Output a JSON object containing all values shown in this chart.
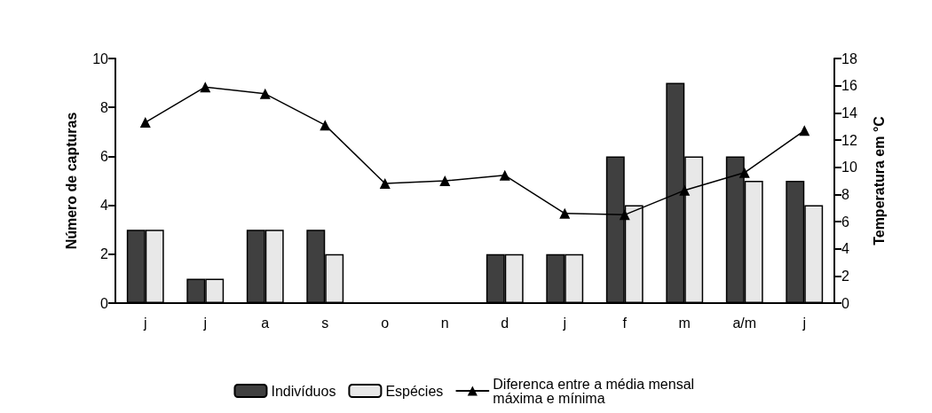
{
  "chart_data": {
    "type": "bar",
    "ylabel": "Número de capturas",
    "y2label": "Temperatura em °C",
    "categories": [
      "j",
      "j",
      "a",
      "s",
      "o",
      "n",
      "d",
      "j",
      "f",
      "m",
      "a/m",
      "j"
    ],
    "series": [
      {
        "name": "Indivíduos",
        "color": "#404040",
        "values": [
          3,
          1,
          3,
          3,
          0,
          0,
          2,
          2,
          6,
          9,
          6,
          5
        ]
      },
      {
        "name": "Espécies",
        "color": "#e8e8e8",
        "values": [
          3,
          1,
          3,
          2,
          0,
          0,
          2,
          2,
          4,
          6,
          5,
          4
        ]
      },
      {
        "name": "Diferenca entre a média mensal máxima e mínima",
        "type": "line",
        "axis": "y2",
        "color": "#000000",
        "marker": "triangle",
        "values": [
          13.3,
          15.9,
          15.4,
          13.1,
          8.8,
          9.0,
          9.4,
          6.6,
          6.5,
          8.3,
          9.6,
          12.7
        ]
      }
    ],
    "ylim": [
      0,
      10
    ],
    "yticks": [
      0,
      2,
      4,
      6,
      8,
      10
    ],
    "y2lim": [
      0,
      18
    ],
    "y2ticks": [
      0,
      2,
      4,
      6,
      8,
      10,
      12,
      14,
      16,
      18
    ],
    "grid": false,
    "legend": "bottom"
  }
}
